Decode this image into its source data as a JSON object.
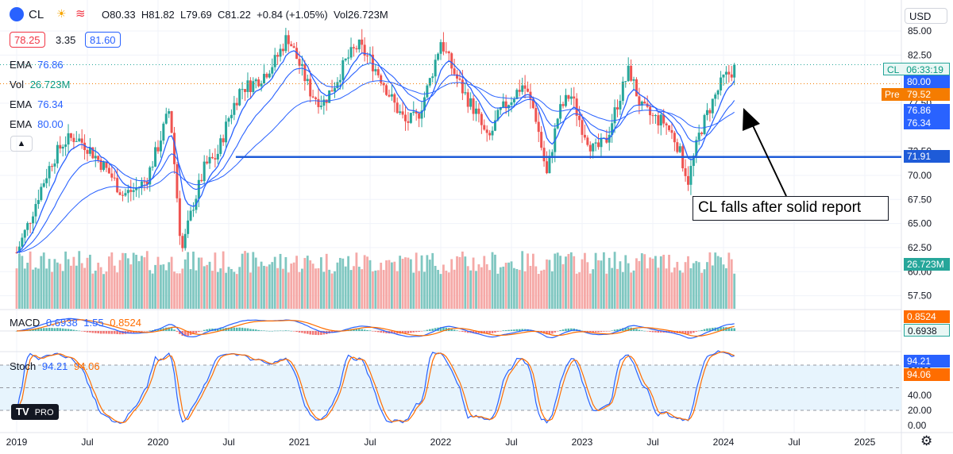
{
  "header": {
    "symbol": "CL",
    "ohlc_text": "O80.33  H81.82  L79.69  C81.22  +0.84 (+1.05%)  Vol26.723M",
    "bid": "78.25",
    "spread": "3.35",
    "ask": "81.60",
    "currency": "USD"
  },
  "indicators": {
    "ema1": {
      "label": "EMA",
      "value": "76.86",
      "color": "#2962ff"
    },
    "vol": {
      "label": "Vol",
      "value": "26.723M",
      "color": "#089981"
    },
    "ema2": {
      "label": "EMA",
      "value": "76.34",
      "color": "#2962ff"
    },
    "ema3": {
      "label": "EMA",
      "value": "80.00",
      "color": "#2962ff"
    },
    "macd": {
      "label": "MACD",
      "v1": "0.6938",
      "v2": "1.55",
      "v3": "0.8524"
    },
    "stoch": {
      "label": "Stoch",
      "k": "94.21",
      "d": "94.06"
    }
  },
  "price_axis": {
    "ticks": [
      "85.00",
      "82.50",
      "77.50",
      "72.50",
      "70.00",
      "67.50",
      "65.00",
      "62.50",
      "60.00",
      "57.50"
    ],
    "labels": {
      "last": "CL",
      "countdown": "06:33:19",
      "ema_fast": "80.00",
      "pre_tag": "Pre",
      "pre_value": "79.52",
      "ema_mid": "76.86",
      "ema_slow": "76.34",
      "hline": "71.91",
      "volume": "26.723M"
    }
  },
  "macd_axis": {
    "v1": "0.8524",
    "v2": "0.6938"
  },
  "stoch_axis": {
    "ticks": [
      "80.00",
      "40.00",
      "20.00",
      "0.00"
    ],
    "k": "94.21",
    "d": "94.06"
  },
  "time_axis": [
    "2019",
    "Jul",
    "2020",
    "Jul",
    "2021",
    "Jul",
    "2022",
    "Jul",
    "2023",
    "Jul",
    "2024",
    "Jul",
    "2025"
  ],
  "annotation": "CL falls after solid report",
  "brand": "PRO",
  "colors": {
    "up": "#26a69a",
    "down": "#ef5350",
    "ema_blue": "#2962ff",
    "support_line": "#1e5bd8",
    "macd_signal": "#ff6d00",
    "pre_orange": "#f57c00",
    "vol_up": "#80c7c1",
    "vol_down": "#f5a9a7"
  },
  "chart_data": {
    "type": "line",
    "title": "CL",
    "xlabel": "",
    "ylabel": "",
    "x_range": [
      "2019-01",
      "2025-04"
    ],
    "ylim": [
      56,
      86
    ],
    "horizontal_line": 71.91,
    "series": [
      {
        "values": [
          [
            "2019-01",
            62.0
          ],
          [
            "2019-02",
            65.0
          ],
          [
            "2019-03",
            68.5
          ],
          [
            "2019-04",
            71.5
          ],
          [
            "2019-05",
            73.5
          ],
          [
            "2019-06",
            74.0
          ],
          [
            "2019-07",
            73.0
          ],
          [
            "2019-08",
            71.5
          ],
          [
            "2019-09",
            70.0
          ],
          [
            "2019-10",
            68.0
          ],
          [
            "2019-11",
            68.5
          ],
          [
            "2019-12",
            69.5
          ],
          [
            "2020-01",
            73.0
          ],
          [
            "2020-02",
            77.0
          ],
          [
            "2020-03",
            62.0
          ],
          [
            "2020-04",
            67.0
          ],
          [
            "2020-05",
            71.0
          ],
          [
            "2020-06",
            72.0
          ],
          [
            "2020-07",
            76.0
          ],
          [
            "2020-08",
            79.0
          ],
          [
            "2020-09",
            79.5
          ],
          [
            "2020-10",
            80.5
          ],
          [
            "2020-11",
            82.0
          ],
          [
            "2020-12",
            84.5
          ],
          [
            "2021-01",
            81.5
          ],
          [
            "2021-02",
            78.5
          ],
          [
            "2021-03",
            77.5
          ],
          [
            "2021-04",
            79.5
          ],
          [
            "2021-05",
            82.0
          ],
          [
            "2021-06",
            83.5
          ],
          [
            "2021-07",
            82.0
          ],
          [
            "2021-08",
            80.0
          ],
          [
            "2021-09",
            77.5
          ],
          [
            "2021-10",
            75.5
          ],
          [
            "2021-11",
            76.0
          ],
          [
            "2021-12",
            79.5
          ],
          [
            "2022-01",
            84.0
          ],
          [
            "2022-02",
            81.0
          ],
          [
            "2022-03",
            78.5
          ],
          [
            "2022-04",
            76.5
          ],
          [
            "2022-05",
            73.5
          ],
          [
            "2022-06",
            76.5
          ],
          [
            "2022-07",
            78.0
          ],
          [
            "2022-08",
            79.5
          ],
          [
            "2022-09",
            76.5
          ],
          [
            "2022-10",
            70.0
          ],
          [
            "2022-11",
            76.5
          ],
          [
            "2022-12",
            78.5
          ],
          [
            "2023-01",
            75.0
          ],
          [
            "2023-02",
            72.5
          ],
          [
            "2023-03",
            73.5
          ],
          [
            "2023-04",
            77.5
          ],
          [
            "2023-05",
            81.0
          ],
          [
            "2023-06",
            77.0
          ],
          [
            "2023-07",
            76.0
          ],
          [
            "2023-08",
            75.5
          ],
          [
            "2023-09",
            73.5
          ],
          [
            "2023-10",
            69.5
          ],
          [
            "2023-11",
            74.5
          ],
          [
            "2023-12",
            77.5
          ],
          [
            "2024-01",
            80.0
          ],
          [
            "2024-02",
            81.2
          ]
        ]
      }
    ]
  }
}
